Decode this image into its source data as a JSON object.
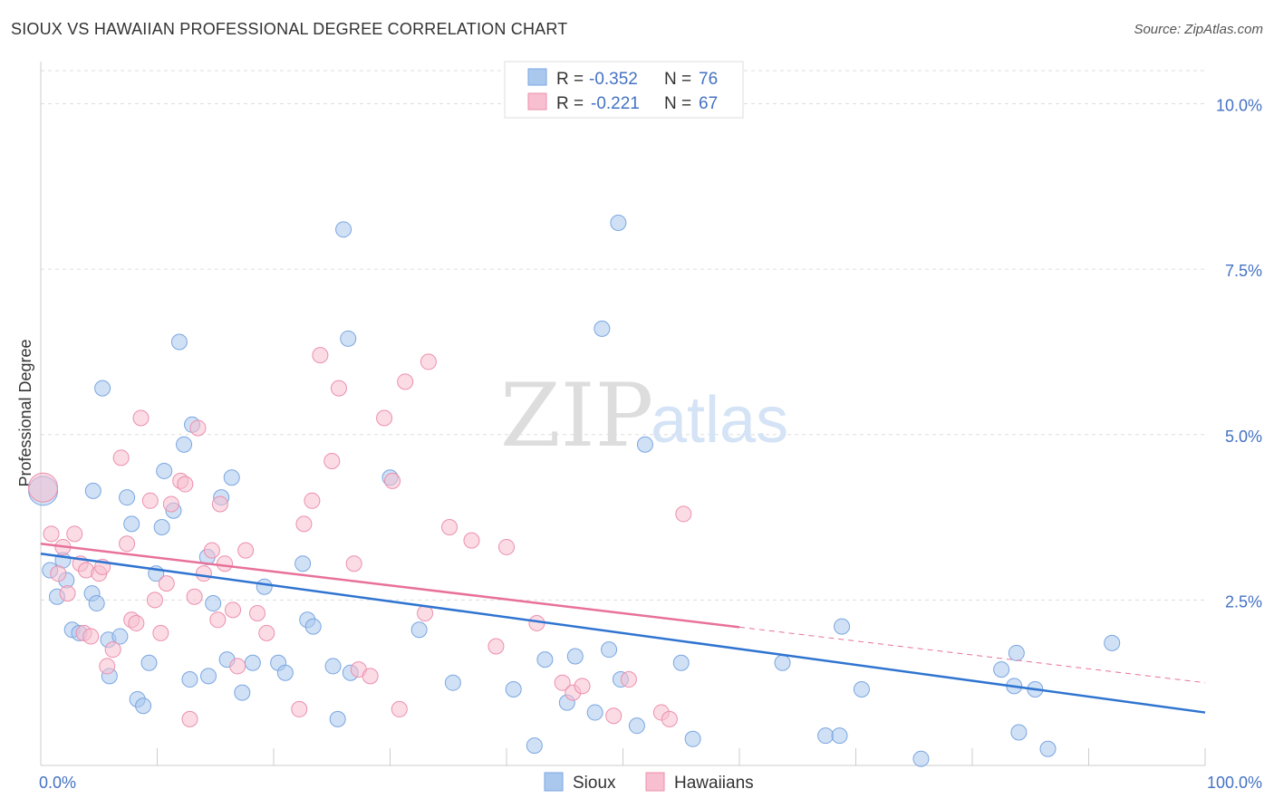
{
  "title": "SIOUX VS HAWAIIAN PROFESSIONAL DEGREE CORRELATION CHART",
  "source": "Source: ZipAtlas.com",
  "watermark": {
    "zip": "ZIP",
    "atlas": "atlas"
  },
  "colors": {
    "sioux_fill": "#aac8ee",
    "sioux_stroke": "#7aa6e0",
    "sioux_line": "#2f74d0",
    "hawaiian_fill": "#f7bfd0",
    "hawaiian_stroke": "#ec8fae",
    "hawaiian_line": "#e8719a",
    "tick_text": "#4472c4",
    "grid": "#dddddd"
  },
  "legend": {
    "rows": [
      {
        "r_label": "R =",
        "r_value": "-0.352",
        "n_label": "N =",
        "n_value": "76"
      },
      {
        "r_label": "R =",
        "r_value": "-0.221",
        "n_label": "N =",
        "n_value": "67"
      }
    ]
  },
  "bottom_legend": [
    "Sioux",
    "Hawaiians"
  ],
  "chart_data": {
    "type": "scatter",
    "xlabel": "",
    "ylabel": "Professional Degree",
    "xlim": [
      0,
      100
    ],
    "ylim": [
      0,
      10.5
    ],
    "x_tick_labels": [
      "0.0%",
      "100.0%"
    ],
    "y_ticks": [
      2.5,
      5.0,
      7.5,
      10.0
    ],
    "y_tick_labels": [
      "2.5%",
      "5.0%",
      "7.5%",
      "10.0%"
    ],
    "grid": "horizontal dashed",
    "series": [
      {
        "name": "Sioux",
        "points": [
          [
            0.2,
            4.15
          ],
          [
            0.8,
            2.95
          ],
          [
            1.4,
            2.55
          ],
          [
            1.9,
            3.1
          ],
          [
            2.2,
            2.8
          ],
          [
            2.7,
            2.05
          ],
          [
            3.3,
            2.0
          ],
          [
            4.4,
            2.6
          ],
          [
            4.5,
            4.15
          ],
          [
            4.8,
            2.45
          ],
          [
            5.3,
            5.7
          ],
          [
            5.8,
            1.9
          ],
          [
            5.9,
            1.35
          ],
          [
            6.8,
            1.95
          ],
          [
            7.4,
            4.05
          ],
          [
            7.8,
            3.65
          ],
          [
            8.3,
            1.0
          ],
          [
            8.8,
            0.9
          ],
          [
            9.3,
            1.55
          ],
          [
            9.9,
            2.9
          ],
          [
            10.4,
            3.6
          ],
          [
            10.6,
            4.45
          ],
          [
            11.4,
            3.85
          ],
          [
            11.9,
            6.4
          ],
          [
            12.3,
            4.85
          ],
          [
            12.8,
            1.3
          ],
          [
            13.0,
            5.15
          ],
          [
            14.3,
            3.15
          ],
          [
            14.4,
            1.35
          ],
          [
            14.8,
            2.45
          ],
          [
            15.5,
            4.05
          ],
          [
            16.0,
            1.6
          ],
          [
            16.4,
            4.35
          ],
          [
            17.3,
            1.1
          ],
          [
            18.2,
            1.55
          ],
          [
            19.2,
            2.7
          ],
          [
            20.4,
            1.55
          ],
          [
            21.0,
            1.4
          ],
          [
            22.5,
            3.05
          ],
          [
            22.9,
            2.2
          ],
          [
            23.4,
            2.1
          ],
          [
            25.1,
            1.5
          ],
          [
            25.5,
            0.7
          ],
          [
            26.0,
            8.1
          ],
          [
            26.4,
            6.45
          ],
          [
            26.6,
            1.4
          ],
          [
            30.0,
            4.35
          ],
          [
            32.5,
            2.05
          ],
          [
            35.4,
            1.25
          ],
          [
            40.6,
            1.15
          ],
          [
            42.4,
            0.3
          ],
          [
            43.3,
            1.6
          ],
          [
            45.2,
            0.95
          ],
          [
            45.9,
            1.65
          ],
          [
            47.6,
            0.8
          ],
          [
            48.2,
            6.6
          ],
          [
            48.8,
            1.75
          ],
          [
            49.6,
            8.2
          ],
          [
            49.8,
            1.3
          ],
          [
            51.2,
            0.6
          ],
          [
            51.9,
            4.85
          ],
          [
            55.0,
            1.55
          ],
          [
            56.0,
            0.4
          ],
          [
            63.7,
            1.55
          ],
          [
            67.4,
            0.45
          ],
          [
            68.6,
            0.45
          ],
          [
            68.8,
            2.1
          ],
          [
            70.5,
            1.15
          ],
          [
            75.6,
            0.1
          ],
          [
            82.5,
            1.45
          ],
          [
            83.6,
            1.2
          ],
          [
            83.8,
            1.7
          ],
          [
            84.0,
            0.5
          ],
          [
            85.4,
            1.15
          ],
          [
            86.5,
            0.25
          ],
          [
            92.0,
            1.85
          ]
        ]
      },
      {
        "name": "Hawaiians",
        "points": [
          [
            0.2,
            4.2
          ],
          [
            0.9,
            3.5
          ],
          [
            1.5,
            2.9
          ],
          [
            1.9,
            3.3
          ],
          [
            2.3,
            2.6
          ],
          [
            2.9,
            3.5
          ],
          [
            3.4,
            3.05
          ],
          [
            3.7,
            2.0
          ],
          [
            3.9,
            2.95
          ],
          [
            4.3,
            1.95
          ],
          [
            5.0,
            2.9
          ],
          [
            5.3,
            3.0
          ],
          [
            5.7,
            1.5
          ],
          [
            6.2,
            1.75
          ],
          [
            6.9,
            4.65
          ],
          [
            7.4,
            3.35
          ],
          [
            7.8,
            2.2
          ],
          [
            8.2,
            2.15
          ],
          [
            8.6,
            5.25
          ],
          [
            9.4,
            4.0
          ],
          [
            9.8,
            2.5
          ],
          [
            10.3,
            2.0
          ],
          [
            10.8,
            2.75
          ],
          [
            11.2,
            3.95
          ],
          [
            12.0,
            4.3
          ],
          [
            12.4,
            4.25
          ],
          [
            12.8,
            0.7
          ],
          [
            13.2,
            2.55
          ],
          [
            13.5,
            5.1
          ],
          [
            14.0,
            2.9
          ],
          [
            14.7,
            3.25
          ],
          [
            15.2,
            2.2
          ],
          [
            15.4,
            3.95
          ],
          [
            15.8,
            3.05
          ],
          [
            16.5,
            2.35
          ],
          [
            16.9,
            1.5
          ],
          [
            17.6,
            3.25
          ],
          [
            18.6,
            2.3
          ],
          [
            19.4,
            2.0
          ],
          [
            22.2,
            0.85
          ],
          [
            22.6,
            3.65
          ],
          [
            23.3,
            4.0
          ],
          [
            24.0,
            6.2
          ],
          [
            25.0,
            4.6
          ],
          [
            25.6,
            5.7
          ],
          [
            26.9,
            3.05
          ],
          [
            27.3,
            1.45
          ],
          [
            28.3,
            1.35
          ],
          [
            29.5,
            5.25
          ],
          [
            30.2,
            4.3
          ],
          [
            30.8,
            0.85
          ],
          [
            31.3,
            5.8
          ],
          [
            33.0,
            2.3
          ],
          [
            33.3,
            6.1
          ],
          [
            35.1,
            3.6
          ],
          [
            37.0,
            3.4
          ],
          [
            39.1,
            1.8
          ],
          [
            40.0,
            3.3
          ],
          [
            42.6,
            2.15
          ],
          [
            44.8,
            1.25
          ],
          [
            45.7,
            1.1
          ],
          [
            46.5,
            1.2
          ],
          [
            49.2,
            0.75
          ],
          [
            50.5,
            1.3
          ],
          [
            53.3,
            0.8
          ],
          [
            54.0,
            0.7
          ],
          [
            55.2,
            3.8
          ]
        ]
      }
    ],
    "trend_lines": [
      {
        "name": "Sioux",
        "x": [
          0,
          100
        ],
        "y": [
          3.2,
          0.8
        ],
        "dashed_from": null
      },
      {
        "name": "Hawaiians",
        "x": [
          0,
          100
        ],
        "y": [
          3.35,
          1.25
        ],
        "solid_until": 60
      }
    ]
  }
}
